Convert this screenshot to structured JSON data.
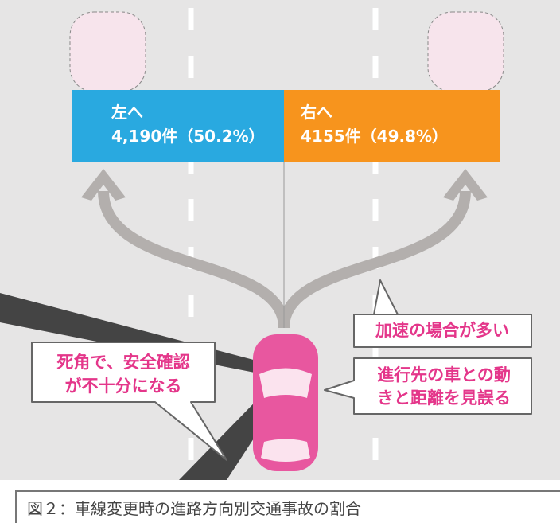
{
  "directions": [
    {
      "label": "左へ",
      "count": "4,190件（50.2%）"
    },
    {
      "label": "右へ",
      "count": "4155件（49.8%）"
    }
  ],
  "callouts": [
    {
      "lines": [
        "加速の場合が多い"
      ]
    },
    {
      "lines": [
        "死角で、安全確認",
        "が不十分になる"
      ]
    },
    {
      "lines": [
        "進行先の車との動",
        "きと距離を見誤る"
      ]
    }
  ],
  "caption": "図２：車線変更時の進路方向別交通事故の割合"
}
